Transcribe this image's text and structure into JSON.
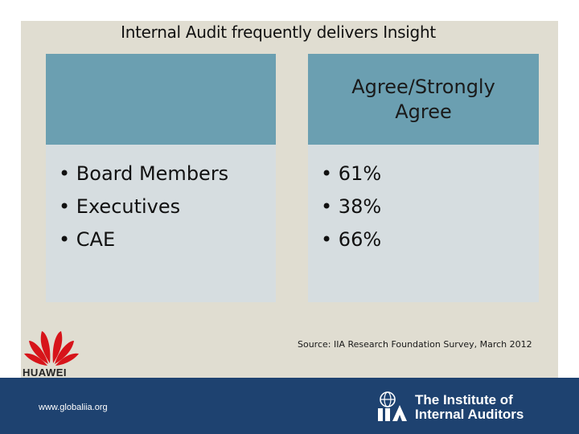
{
  "slide": {
    "title": "Internal Audit frequently delivers Insight"
  },
  "table": {
    "header_left": "",
    "header_right": "Agree/Strongly Agree",
    "groups": [
      "Board Members",
      "Executives",
      "CAE"
    ],
    "values": [
      "61%",
      "38%",
      "66%"
    ]
  },
  "source": "Source: IIA Research Foundation Survey, March 2012",
  "footer": {
    "url": "www.globaliia.org",
    "org_name_line1": "The Institute of",
    "org_name_line2": "Internal Auditors"
  },
  "logos": {
    "huawei_text": "HUAWEI"
  },
  "colors": {
    "slide_background": "#e0ddd1",
    "header_fill": "#6b9fb1",
    "body_fill": "#d6dde0",
    "footer_fill": "#1e4270",
    "huawei_red": "#d7141a"
  }
}
